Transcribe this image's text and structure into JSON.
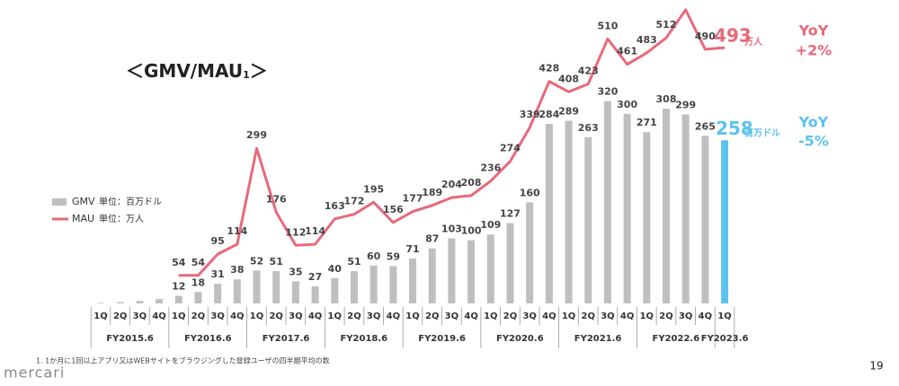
{
  "chart_data": {
    "type": "bar-line",
    "title_parts": [
      "＜GMV/MAU",
      "1",
      "＞"
    ],
    "categories": [
      "1Q",
      "2Q",
      "3Q",
      "4Q",
      "1Q",
      "2Q",
      "3Q",
      "4Q",
      "1Q",
      "2Q",
      "3Q",
      "4Q",
      "1Q",
      "2Q",
      "3Q",
      "4Q",
      "1Q",
      "2Q",
      "3Q",
      "4Q",
      "1Q",
      "2Q",
      "3Q",
      "4Q",
      "1Q",
      "2Q",
      "3Q",
      "4Q",
      "1Q",
      "2Q",
      "3Q",
      "4Q",
      "1Q"
    ],
    "fiscal_years": [
      "FY2015.6",
      "FY2016.6",
      "FY2017.6",
      "FY2018.6",
      "FY2019.6",
      "FY2020.6",
      "FY2021.6",
      "FY2022.6",
      "FY2023.6"
    ],
    "ylim": [
      0,
      480
    ],
    "y2lim": [
      0,
      585
    ],
    "series": [
      {
        "name": "GMV",
        "unit": "単位：百万ドル",
        "type": "bar",
        "color": "#bfbfbf",
        "latest_color": "#5bc2ef",
        "values": [
          1,
          2,
          4,
          7,
          12,
          18,
          31,
          38,
          52,
          51,
          35,
          27,
          40,
          51,
          60,
          59,
          71,
          87,
          103,
          100,
          109,
          127,
          160,
          284,
          289,
          263,
          320,
          300,
          271,
          308,
          299,
          265,
          258
        ],
        "latest_unit": "百万ドル",
        "yoy_label": "YoY",
        "yoy": "-5%"
      },
      {
        "name": "MAU",
        "unit": "単位：万人",
        "type": "line",
        "axis": "y2",
        "color": "#e8697a",
        "values": [
          null,
          null,
          null,
          null,
          54,
          54,
          95,
          114,
          299,
          176,
          112,
          114,
          163,
          172,
          195,
          156,
          177,
          189,
          204,
          208,
          236,
          274,
          339,
          428,
          408,
          423,
          510,
          461,
          483,
          512,
          566,
          490,
          493
        ],
        "latest_unit": "万人",
        "yoy_label": "YoY",
        "yoy": "+2%"
      }
    ],
    "footnote": "1. 1か月に1回以上アプリ又はWEBサイトをブラウジングした登録ユーザの四半期平均の数",
    "logo": "mercari",
    "page_number": "19"
  }
}
